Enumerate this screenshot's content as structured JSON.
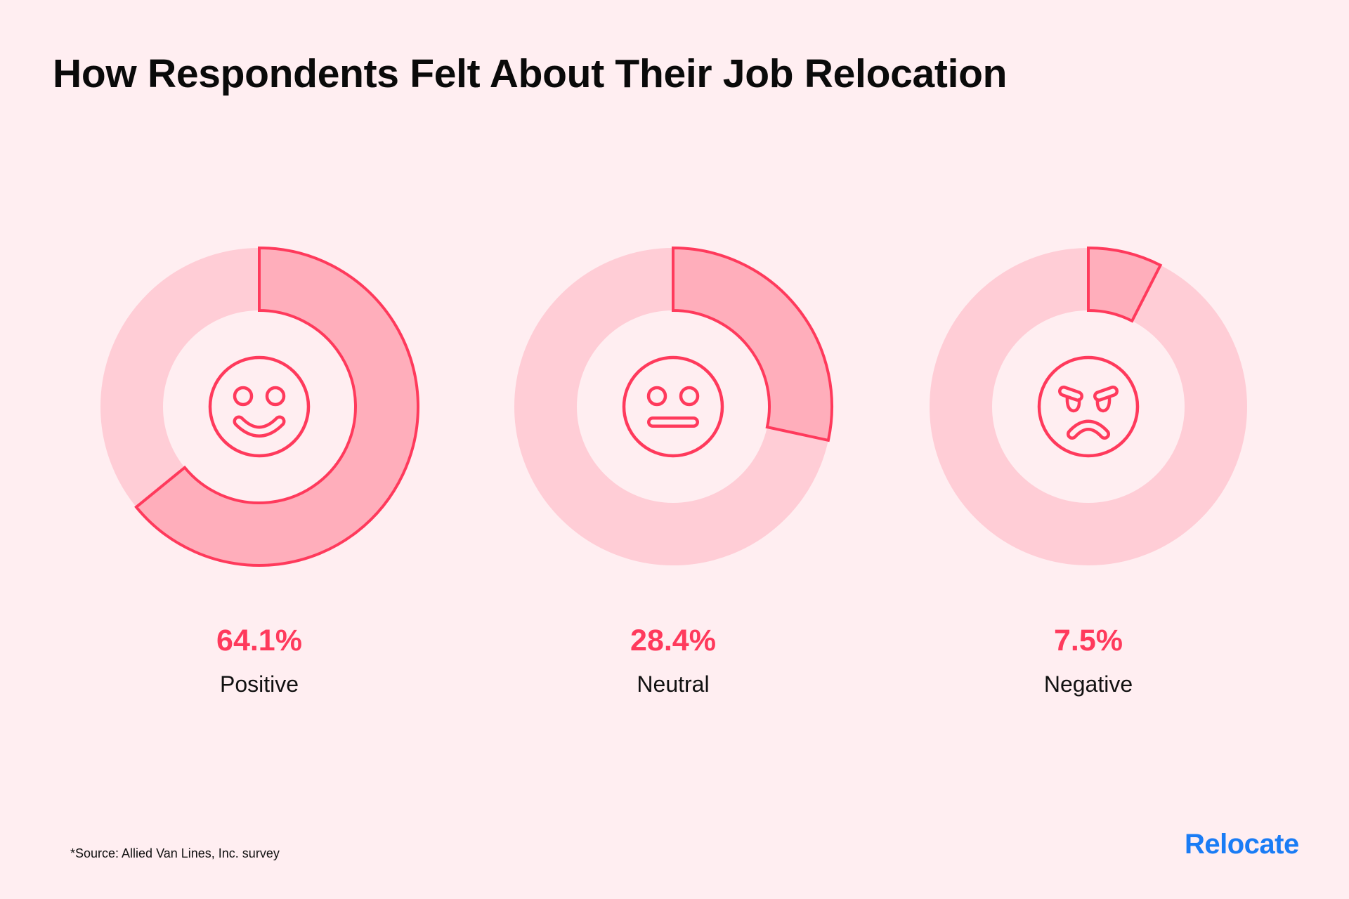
{
  "title": "How Respondents Felt About Their Job Relocation",
  "chart_data": {
    "type": "pie",
    "variant": "donut-per-category",
    "title": "How Respondents Felt About Their Job Relocation",
    "unit": "%",
    "categories": [
      "Positive",
      "Neutral",
      "Negative"
    ],
    "values": [
      64.1,
      28.4,
      7.5
    ],
    "value_labels": [
      "64.1%",
      "28.4%",
      "7.5%"
    ],
    "icons": [
      "smiling-face-icon",
      "neutral-face-icon",
      "angry-face-icon"
    ],
    "colors": {
      "background": "#ffeef1",
      "track": "#ffcdd6",
      "slice": "#ffaebb",
      "accent": "#ff3a5c"
    }
  },
  "footer": {
    "source": "*Source: Allied Van Lines, Inc. survey",
    "logo": "Relocate"
  }
}
